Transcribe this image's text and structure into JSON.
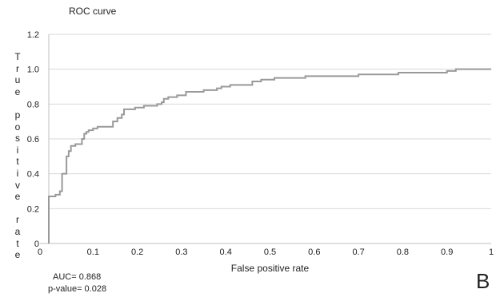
{
  "chart_data": {
    "type": "line",
    "title": "ROC curve",
    "xlabel": "False positive rate",
    "ylabel": "True positive rate",
    "xlim": [
      0,
      1
    ],
    "ylim": [
      0,
      1.2
    ],
    "x_ticks": [
      "0",
      "0.1",
      "0.2",
      "0.3",
      "0.4",
      "0.5",
      "0.6",
      "0.7",
      "0.8",
      "0.9",
      "1"
    ],
    "y_ticks": [
      "0",
      "0.2",
      "0.4",
      "0.6",
      "0.8",
      "1.0",
      "1.2"
    ],
    "grid": "horizontal",
    "series": [
      {
        "color": "#999999",
        "x": [
          0,
          0,
          0.015,
          0.015,
          0.025,
          0.025,
          0.03,
          0.03,
          0.04,
          0.04,
          0.045,
          0.045,
          0.05,
          0.05,
          0.06,
          0.06,
          0.075,
          0.075,
          0.08,
          0.08,
          0.085,
          0.085,
          0.09,
          0.09,
          0.1,
          0.1,
          0.11,
          0.11,
          0.145,
          0.145,
          0.155,
          0.155,
          0.165,
          0.165,
          0.17,
          0.17,
          0.195,
          0.195,
          0.215,
          0.215,
          0.245,
          0.245,
          0.255,
          0.255,
          0.26,
          0.26,
          0.27,
          0.27,
          0.29,
          0.29,
          0.31,
          0.31,
          0.35,
          0.35,
          0.38,
          0.38,
          0.39,
          0.39,
          0.41,
          0.41,
          0.46,
          0.46,
          0.48,
          0.48,
          0.51,
          0.51,
          0.58,
          0.58,
          0.7,
          0.7,
          0.79,
          0.79,
          0.9,
          0.9,
          0.92,
          0.92,
          1.0
        ],
        "y": [
          0,
          0.27,
          0.27,
          0.28,
          0.28,
          0.3,
          0.3,
          0.4,
          0.4,
          0.5,
          0.5,
          0.53,
          0.53,
          0.56,
          0.56,
          0.57,
          0.57,
          0.6,
          0.6,
          0.63,
          0.63,
          0.64,
          0.64,
          0.65,
          0.65,
          0.66,
          0.66,
          0.67,
          0.67,
          0.7,
          0.7,
          0.72,
          0.72,
          0.74,
          0.74,
          0.77,
          0.77,
          0.78,
          0.78,
          0.79,
          0.79,
          0.8,
          0.8,
          0.81,
          0.81,
          0.83,
          0.83,
          0.84,
          0.84,
          0.85,
          0.85,
          0.87,
          0.87,
          0.88,
          0.88,
          0.89,
          0.89,
          0.9,
          0.9,
          0.91,
          0.91,
          0.93,
          0.93,
          0.94,
          0.94,
          0.95,
          0.95,
          0.96,
          0.96,
          0.97,
          0.97,
          0.98,
          0.98,
          0.99,
          0.99,
          1.0,
          1.0
        ]
      }
    ]
  },
  "annotations": {
    "auc": "AUC= 0.868",
    "pvalue": "p-value= 0.028",
    "panel_label": "B"
  },
  "colors": {
    "curve": "#999999",
    "grid": "#d9d9d9",
    "axis": "#bfbfbf",
    "text": "#222222"
  }
}
